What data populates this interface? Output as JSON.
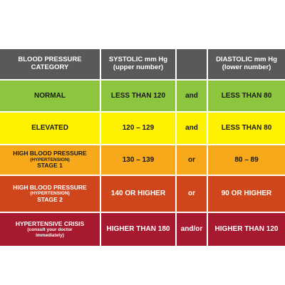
{
  "colors": {
    "header": "#58595b",
    "normal": "#8cc63f",
    "elevated": "#fff200",
    "stage1": "#f7a81b",
    "stage2": "#d0461c",
    "crisis": "#a6192e"
  },
  "header": {
    "category_line1": "BLOOD PRESSURE",
    "category_line2": "CATEGORY",
    "systolic_line1": "SYSTOLIC mm Hg",
    "systolic_line2": "(upper number)",
    "diastolic_line1": "DIASTOLIC mm Hg",
    "diastolic_line2": "(lower number)"
  },
  "rows": [
    {
      "category": "NORMAL",
      "systolic": "LESS THAN 120",
      "conj": "and",
      "diastolic": "LESS THAN 80"
    },
    {
      "category": "ELEVATED",
      "systolic": "120 – 129",
      "conj": "and",
      "diastolic": "LESS THAN 80"
    },
    {
      "category": "HIGH BLOOD PRESSURE",
      "note": "(HYPERTENSION)",
      "stage": "STAGE 1",
      "systolic": "130 – 139",
      "conj": "or",
      "diastolic": "80 – 89"
    },
    {
      "category": "HIGH BLOOD PRESSURE",
      "note": "(HYPERTENSION)",
      "stage": "STAGE 2",
      "systolic": "140 OR HIGHER",
      "conj": "or",
      "diastolic": "90 OR HIGHER"
    },
    {
      "category": "HYPERTENSIVE CRISIS",
      "note1": "(consult your doctor",
      "note2": "immediately)",
      "systolic": "HIGHER THAN 180",
      "conj": "and/or",
      "diastolic": "HIGHER THAN 120"
    }
  ]
}
